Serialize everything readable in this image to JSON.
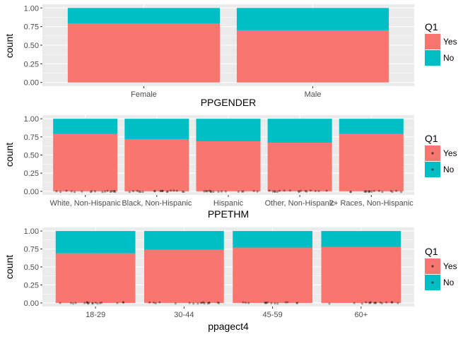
{
  "colors": {
    "Yes": "#F8766D",
    "No": "#00BFC4",
    "panel": "#EBEBEB",
    "grid": "#FFFFFF"
  },
  "chart_data": [
    {
      "type": "bar",
      "stacked": true,
      "xlabel": "PPGENDER",
      "ylabel": "count",
      "ylim": [
        0,
        1
      ],
      "yticks": [
        "0.00",
        "0.25",
        "0.50",
        "0.75",
        "1.00"
      ],
      "categories": [
        "Female",
        "Male"
      ],
      "series": [
        {
          "name": "Yes",
          "values": [
            0.79,
            0.7
          ]
        },
        {
          "name": "No",
          "values": [
            0.21,
            0.3
          ]
        }
      ],
      "legend": {
        "title": "Q1",
        "items": [
          "Yes",
          "No"
        ],
        "position": "right"
      },
      "jitter_points": false
    },
    {
      "type": "bar",
      "stacked": true,
      "xlabel": "PPETHM",
      "ylabel": "count",
      "ylim": [
        0,
        1
      ],
      "yticks": [
        "0.00",
        "0.25",
        "0.50",
        "0.75",
        "1.00"
      ],
      "categories": [
        "White, Non-Hispanic",
        "Black, Non-Hispanic",
        "Hispanic",
        "Other, Non-Hispanic",
        "2+ Races, Non-Hispanic"
      ],
      "series": [
        {
          "name": "Yes",
          "values": [
            0.79,
            0.72,
            0.69,
            0.67,
            0.79
          ]
        },
        {
          "name": "No",
          "values": [
            0.21,
            0.28,
            0.31,
            0.33,
            0.21
          ]
        }
      ],
      "legend": {
        "title": "Q1",
        "items": [
          "Yes",
          "No"
        ],
        "position": "right"
      },
      "jitter_points": true
    },
    {
      "type": "bar",
      "stacked": true,
      "xlabel": "ppagect4",
      "ylabel": "count",
      "ylim": [
        0,
        1
      ],
      "yticks": [
        "0.00",
        "0.25",
        "0.50",
        "0.75",
        "1.00"
      ],
      "categories": [
        "18-29",
        "30-44",
        "45-59",
        "60+"
      ],
      "series": [
        {
          "name": "Yes",
          "values": [
            0.69,
            0.74,
            0.77,
            0.78
          ]
        },
        {
          "name": "No",
          "values": [
            0.31,
            0.26,
            0.23,
            0.22
          ]
        }
      ],
      "legend": {
        "title": "Q1",
        "items": [
          "Yes",
          "No"
        ],
        "position": "right"
      },
      "jitter_points": true
    }
  ]
}
